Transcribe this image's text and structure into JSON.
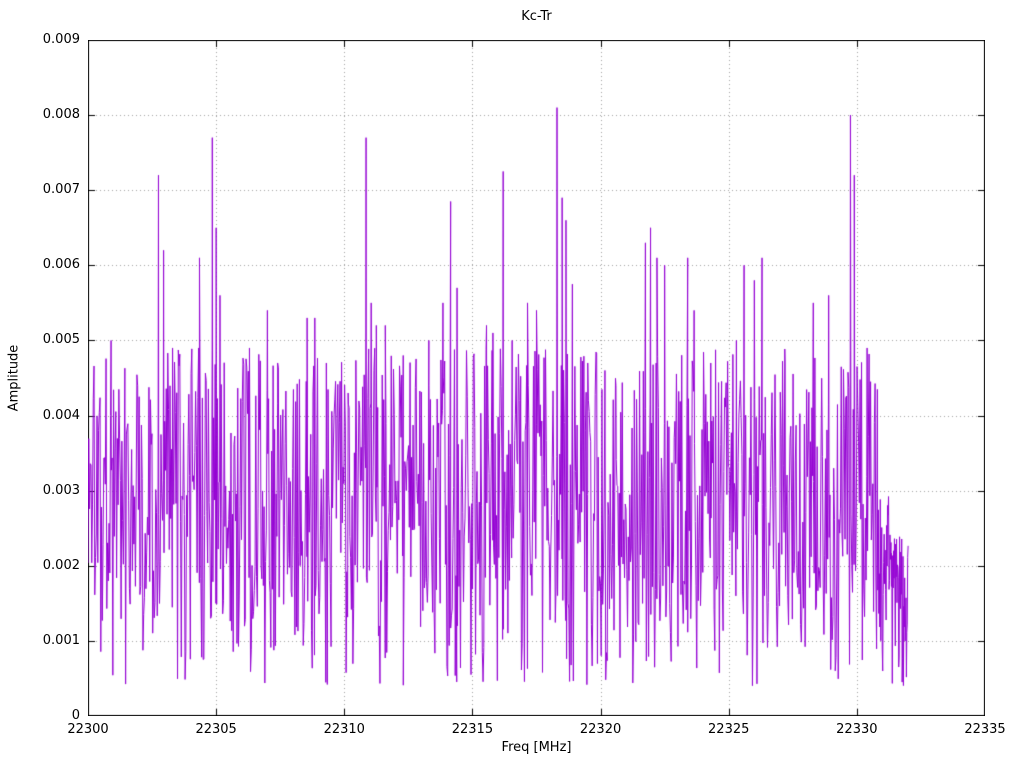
{
  "chart_data": {
    "type": "line",
    "title": "Kc-Tr",
    "xlabel": "Freq [MHz]",
    "ylabel": "Amplitude",
    "xlim": [
      22300,
      22335
    ],
    "ylim": [
      0,
      0.009
    ],
    "xticks": [
      22300,
      22305,
      22310,
      22315,
      22320,
      22325,
      22330,
      22335
    ],
    "xtick_labels": [
      "22300",
      "22305",
      "22310",
      "22315",
      "22320",
      "22325",
      "22330",
      "22335"
    ],
    "yticks": [
      0,
      0.001,
      0.002,
      0.003,
      0.004,
      0.005,
      0.006,
      0.007,
      0.008,
      0.009
    ],
    "ytick_labels": [
      "0",
      "0.001",
      "0.002",
      "0.003",
      "0.004",
      "0.005",
      "0.006",
      "0.007",
      "0.008",
      "0.009"
    ],
    "grid": true,
    "legend": "none",
    "line_color": "#9400d3",
    "grid_color": "#a0a0a0",
    "axis_color": "#000000",
    "signal": {
      "description": "Dense noisy spectrum trace from 22300 to 22332 MHz; noise floor mostly 0.0005-0.0049 with sharp spikes, tapering low tail after 22331.",
      "seed": 1337,
      "segments": [
        {
          "x0": 22300.0,
          "x1": 22330.8,
          "n": 1050,
          "lo": 0.0004,
          "hi": 0.0049
        },
        {
          "x0": 22330.8,
          "x1": 22331.35,
          "n": 30,
          "lo": 0.0005,
          "hi": 0.003
        },
        {
          "x0": 22331.35,
          "x1": 22332.0,
          "n": 40,
          "lo": 0.0004,
          "hi": 0.0024
        }
      ],
      "peaks": [
        [
          22300.9,
          0.005
        ],
        [
          22302.75,
          0.0072
        ],
        [
          22302.95,
          0.0062
        ],
        [
          22303.3,
          0.0049
        ],
        [
          22304.35,
          0.0061
        ],
        [
          22304.85,
          0.0077
        ],
        [
          22305.0,
          0.0065
        ],
        [
          22305.15,
          0.0056
        ],
        [
          22306.3,
          0.0049
        ],
        [
          22307.0,
          0.0054
        ],
        [
          22307.4,
          0.0047
        ],
        [
          22308.55,
          0.0053
        ],
        [
          22308.85,
          0.0053
        ],
        [
          22309.3,
          0.0047
        ],
        [
          22310.15,
          0.0043
        ],
        [
          22310.85,
          0.0077
        ],
        [
          22311.05,
          0.0055
        ],
        [
          22311.25,
          0.0052
        ],
        [
          22311.6,
          0.0052
        ],
        [
          22312.3,
          0.0048
        ],
        [
          22313.3,
          0.005
        ],
        [
          22313.85,
          0.0055
        ],
        [
          22314.15,
          0.00685
        ],
        [
          22314.4,
          0.0057
        ],
        [
          22315.55,
          0.0052
        ],
        [
          22315.8,
          0.0051
        ],
        [
          22316.2,
          0.00725
        ],
        [
          22316.55,
          0.005
        ],
        [
          22317.15,
          0.0055
        ],
        [
          22317.5,
          0.0054
        ],
        [
          22318.3,
          0.0081
        ],
        [
          22318.5,
          0.0069
        ],
        [
          22318.65,
          0.0066
        ],
        [
          22318.9,
          0.00575
        ],
        [
          22319.5,
          0.0047
        ],
        [
          22320.6,
          0.0044
        ],
        [
          22321.75,
          0.0063
        ],
        [
          22321.95,
          0.0065
        ],
        [
          22322.2,
          0.0061
        ],
        [
          22322.5,
          0.006
        ],
        [
          22323.4,
          0.0061
        ],
        [
          22323.65,
          0.0054
        ],
        [
          22324.3,
          0.0047
        ],
        [
          22325.3,
          0.005
        ],
        [
          22325.6,
          0.006
        ],
        [
          22326.0,
          0.0058
        ],
        [
          22326.3,
          0.0061
        ],
        [
          22327.2,
          0.0047
        ],
        [
          22328.3,
          0.0055
        ],
        [
          22328.9,
          0.0056
        ],
        [
          22329.75,
          0.008
        ],
        [
          22329.9,
          0.0072
        ],
        [
          22330.4,
          0.0049
        ]
      ]
    }
  }
}
